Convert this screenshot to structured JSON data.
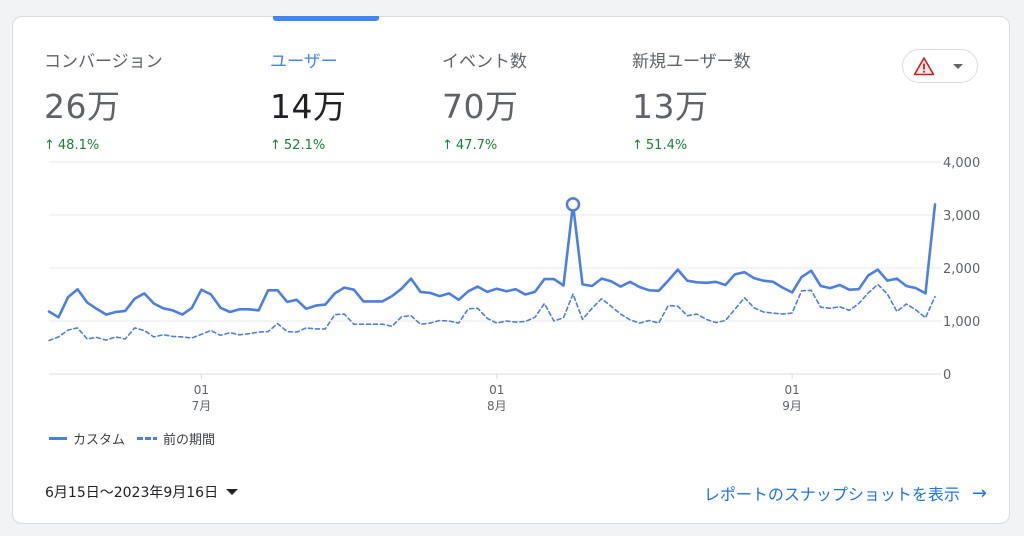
{
  "metrics": [
    {
      "label": "コンバージョン",
      "value": "26万",
      "change": "48.1%",
      "active": false
    },
    {
      "label": "ユーザー",
      "value": "14万",
      "change": "52.1%",
      "active": true
    },
    {
      "label": "イベント数",
      "value": "70万",
      "change": "47.7%",
      "active": false
    },
    {
      "label": "新規ユーザー数",
      "value": "13万",
      "change": "51.4%",
      "active": false
    }
  ],
  "warning_icon": "warning-triangle-icon",
  "legend": {
    "current_label": "カスタム",
    "previous_label": "前の期間"
  },
  "footer": {
    "date_range": "6月15日〜2023年9月16日",
    "snapshot_link": "レポートのスナップショットを表示",
    "arrow": "→"
  },
  "colors": {
    "accent": "#4285f4",
    "line": "#4d7fe0",
    "positive": "#188038",
    "warning": "#c5221f"
  },
  "chart_data": {
    "type": "line",
    "x_start": "2023-06-15",
    "x_end": "2023-09-16",
    "x_tick_labels": [
      {
        "date": "2023-07-01",
        "day": "01",
        "month": "7月"
      },
      {
        "date": "2023-08-01",
        "day": "01",
        "month": "8月"
      },
      {
        "date": "2023-09-01",
        "day": "01",
        "month": "9月"
      }
    ],
    "y_ticks": [
      "0",
      "1,000",
      "2,000",
      "3,000",
      "4,000"
    ],
    "ylim": [
      0,
      4000
    ],
    "grid": true,
    "series": [
      {
        "name": "カスタム",
        "style": "solid",
        "values": [
          1180,
          1070,
          1450,
          1600,
          1350,
          1230,
          1120,
          1170,
          1190,
          1420,
          1520,
          1330,
          1240,
          1200,
          1120,
          1250,
          1590,
          1500,
          1250,
          1170,
          1220,
          1220,
          1200,
          1580,
          1580,
          1360,
          1400,
          1230,
          1290,
          1310,
          1520,
          1630,
          1590,
          1370,
          1370,
          1370,
          1470,
          1610,
          1800,
          1550,
          1530,
          1470,
          1520,
          1400,
          1560,
          1650,
          1550,
          1610,
          1560,
          1600,
          1500,
          1550,
          1790,
          1790,
          1670,
          3200,
          1690,
          1660,
          1800,
          1750,
          1650,
          1740,
          1640,
          1580,
          1570,
          1760,
          1970,
          1760,
          1730,
          1720,
          1740,
          1680,
          1880,
          1920,
          1810,
          1760,
          1740,
          1630,
          1540,
          1830,
          1950,
          1660,
          1620,
          1680,
          1590,
          1600,
          1860,
          1970,
          1760,
          1800,
          1660,
          1620,
          1520,
          3200
        ],
        "highlight_index": 55
      },
      {
        "name": "前の期間",
        "style": "dashed",
        "values": [
          630,
          700,
          830,
          870,
          660,
          690,
          640,
          700,
          660,
          870,
          820,
          700,
          740,
          710,
          700,
          680,
          750,
          820,
          730,
          780,
          740,
          760,
          790,
          800,
          950,
          800,
          790,
          870,
          850,
          850,
          1120,
          1130,
          940,
          940,
          940,
          940,
          900,
          1080,
          1100,
          940,
          960,
          1010,
          1000,
          960,
          1230,
          1240,
          1050,
          960,
          1000,
          980,
          990,
          1070,
          1330,
          1000,
          1060,
          1510,
          1030,
          1240,
          1420,
          1280,
          1130,
          1020,
          960,
          1010,
          960,
          1290,
          1280,
          1100,
          1130,
          1030,
          970,
          1010,
          1220,
          1440,
          1250,
          1170,
          1150,
          1130,
          1150,
          1570,
          1580,
          1260,
          1240,
          1270,
          1200,
          1330,
          1530,
          1690,
          1510,
          1180,
          1320,
          1210,
          1060,
          1460
        ]
      }
    ]
  }
}
